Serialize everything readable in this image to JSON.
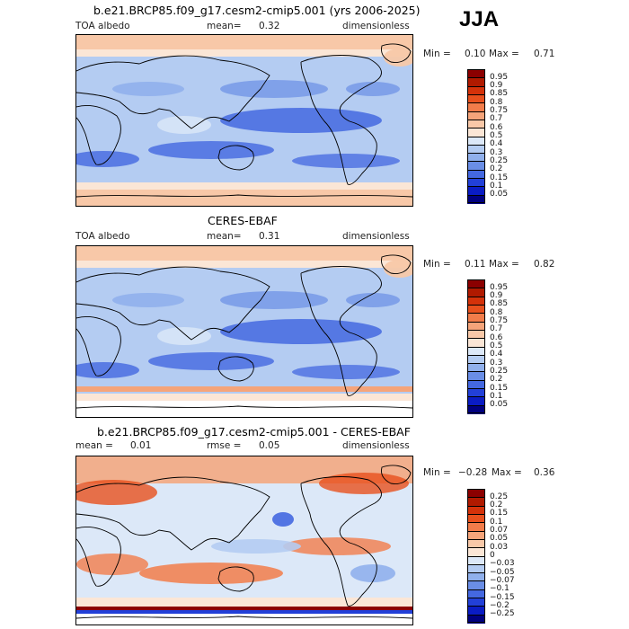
{
  "season": "JJA",
  "panels": [
    {
      "title": "b.e21.BRCP85.f09_g17.cesm2-cmip5.001 (yrs 2006-2025)",
      "left_label": "TOA albedo",
      "mid_label": "mean=",
      "mid_value": "0.32",
      "right_label": "dimensionless",
      "min_label": "Min =",
      "min_value": "0.10",
      "max_label": "Max =",
      "max_value": "0.71",
      "palette": "abs",
      "colorbar_labels": [
        "0.95",
        "0.9",
        "0.85",
        "0.8",
        "0.75",
        "0.7",
        "0.6",
        "0.5",
        "0.4",
        "0.3",
        "0.25",
        "0.2",
        "0.15",
        "0.1",
        "0.05"
      ]
    },
    {
      "title": "CERES-EBAF",
      "left_label": "TOA albedo",
      "mid_label": "mean=",
      "mid_value": "0.31",
      "right_label": "dimensionless",
      "min_label": "Min =",
      "min_value": "0.11",
      "max_label": "Max =",
      "max_value": "0.82",
      "palette": "abs",
      "colorbar_labels": [
        "0.95",
        "0.9",
        "0.85",
        "0.8",
        "0.75",
        "0.7",
        "0.6",
        "0.5",
        "0.4",
        "0.3",
        "0.25",
        "0.2",
        "0.15",
        "0.1",
        "0.05"
      ]
    },
    {
      "title": "b.e21.BRCP85.f09_g17.cesm2-cmip5.001 - CERES-EBAF",
      "left_label": "mean =",
      "left_value": "0.01",
      "mid_label": "rmse =",
      "mid_value": "0.05",
      "right_label": "dimensionless",
      "min_label": "Min =",
      "min_value": "−0.28",
      "max_label": "Max =",
      "max_value": "0.36",
      "palette": "diff",
      "colorbar_labels": [
        "0.25",
        "0.2",
        "0.15",
        "0.1",
        "0.07",
        "0.05",
        "0.03",
        "0",
        "−0.03",
        "−0.05",
        "−0.07",
        "−0.1",
        "−0.15",
        "−0.2",
        "−0.25"
      ]
    }
  ],
  "palettes": {
    "abs": [
      "#8b0000",
      "#b01a00",
      "#d4320a",
      "#e8501d",
      "#f27c4a",
      "#f5a47a",
      "#f8c8a8",
      "#fbe6d6",
      "#dce8f8",
      "#b4ccf2",
      "#90b0ec",
      "#6a8ee6",
      "#4468e0",
      "#2240d8",
      "#0a1cc4",
      "#000080"
    ],
    "diff": [
      "#8b0000",
      "#b01a00",
      "#d4320a",
      "#e8501d",
      "#f27c4a",
      "#f5a47a",
      "#f8c8a8",
      "#fbe6d6",
      "#dce8f8",
      "#b4ccf2",
      "#90b0ec",
      "#6a8ee6",
      "#4468e0",
      "#2240d8",
      "#0a1cc4",
      "#000080"
    ]
  }
}
